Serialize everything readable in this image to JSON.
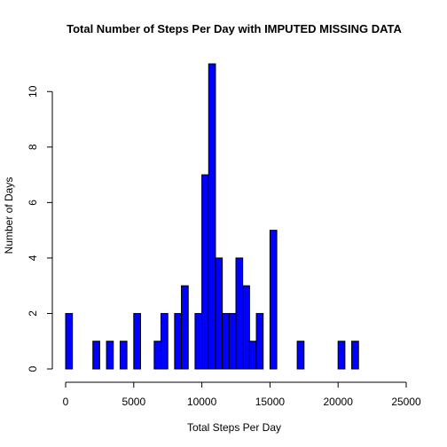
{
  "chart_data": {
    "type": "bar",
    "subtype": "histogram",
    "title": "Total Number of Steps Per Day with IMPUTED MISSING DATA",
    "xlabel": "Total Steps Per Day",
    "ylabel": "Number of Days",
    "xlim": [
      0,
      25000
    ],
    "ylim": [
      0,
      11
    ],
    "x_ticks": [
      0,
      5000,
      10000,
      15000,
      20000,
      25000
    ],
    "y_ticks": [
      0,
      2,
      4,
      6,
      8,
      10
    ],
    "bin_width": 500,
    "bar_color": "#0000ff",
    "border_color": "#000000",
    "grid": false,
    "bins": [
      {
        "start": 0,
        "count": 2
      },
      {
        "start": 2000,
        "count": 1
      },
      {
        "start": 3000,
        "count": 1
      },
      {
        "start": 4000,
        "count": 1
      },
      {
        "start": 5000,
        "count": 2
      },
      {
        "start": 6500,
        "count": 1
      },
      {
        "start": 7000,
        "count": 2
      },
      {
        "start": 8000,
        "count": 2
      },
      {
        "start": 8500,
        "count": 3
      },
      {
        "start": 9500,
        "count": 2
      },
      {
        "start": 10000,
        "count": 7
      },
      {
        "start": 10500,
        "count": 11
      },
      {
        "start": 11000,
        "count": 4
      },
      {
        "start": 11500,
        "count": 2
      },
      {
        "start": 12000,
        "count": 2
      },
      {
        "start": 12500,
        "count": 4
      },
      {
        "start": 13000,
        "count": 3
      },
      {
        "start": 13500,
        "count": 1
      },
      {
        "start": 14000,
        "count": 2
      },
      {
        "start": 15000,
        "count": 5
      },
      {
        "start": 17000,
        "count": 1
      },
      {
        "start": 20000,
        "count": 1
      },
      {
        "start": 21000,
        "count": 1
      }
    ]
  }
}
